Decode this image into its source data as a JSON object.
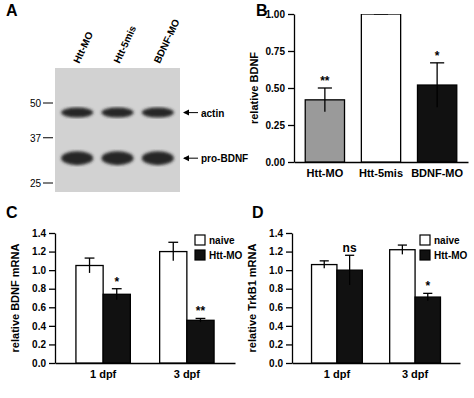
{
  "blot": {
    "label": "A",
    "lanes": [
      "Htt-MO",
      "Htt-5mis",
      "BDNF-MO"
    ],
    "markers": [
      50,
      37,
      25
    ],
    "bands": [
      {
        "label": "actin",
        "kda": 46
      },
      {
        "label": "pro-BDNF",
        "kda": 31
      }
    ]
  },
  "chart_data": [
    {
      "type": "bar",
      "annotations": [
        "B"
      ],
      "ylabel": "relative BDNF",
      "categories": [
        "Htt-MO",
        "Htt-5mis",
        "BDNF-MO"
      ],
      "values": [
        0.42,
        1.0,
        0.52
      ],
      "errors": [
        0.08,
        0,
        0.15
      ],
      "colors": [
        "#9a9a9a",
        "#ffffff",
        "#111111"
      ],
      "significance": [
        "**",
        null,
        "*"
      ],
      "ylim": [
        0,
        1.0
      ],
      "yticks": [
        {
          "value": 0,
          "label": "0.00"
        },
        {
          "value": 0.25,
          "label": "0.25"
        },
        {
          "value": 0.5,
          "label": "0.50"
        },
        {
          "value": 0.75,
          "label": "0.75"
        },
        {
          "value": 1.0,
          "label": "1.00"
        }
      ]
    },
    {
      "type": "bar",
      "annotations": [
        "C"
      ],
      "ylabel": "relative BDNF mRNA",
      "categories": [
        "1 dpf",
        "3 dpf"
      ],
      "series": [
        {
          "name": "naive",
          "color": "#ffffff",
          "values": [
            1.05,
            1.2
          ],
          "errors": [
            0.08,
            0.1
          ]
        },
        {
          "name": "Htt-MO",
          "color": "#111111",
          "values": [
            0.74,
            0.46
          ],
          "errors": [
            0.06,
            0.02
          ],
          "significance": [
            "*",
            "**"
          ]
        }
      ],
      "legend": "top-right",
      "ylim": [
        0,
        1.4
      ],
      "yticks": [
        {
          "value": 0,
          "label": "0.0"
        },
        0.2,
        0.4,
        0.6,
        0.8,
        {
          "value": 1.0,
          "label": "1.0"
        },
        1.2,
        1.4
      ]
    },
    {
      "type": "bar",
      "annotations": [
        "D"
      ],
      "ylabel": "relative TrkB1 mRNA",
      "categories": [
        "1 dpf",
        "3 dpf"
      ],
      "series": [
        {
          "name": "naive",
          "color": "#ffffff",
          "values": [
            1.06,
            1.22
          ],
          "errors": [
            0.04,
            0.05
          ]
        },
        {
          "name": "Htt-MO",
          "color": "#111111",
          "values": [
            1.0,
            0.71
          ],
          "errors": [
            0.16,
            0.04
          ],
          "significance": [
            "ns",
            "*"
          ]
        }
      ],
      "legend": "top-right",
      "ylim": [
        0,
        1.4
      ],
      "yticks": [
        {
          "value": 0,
          "label": "0.0"
        },
        0.2,
        0.4,
        0.6,
        0.8,
        {
          "value": 1.0,
          "label": "1.0"
        },
        1.2,
        1.4
      ]
    }
  ]
}
